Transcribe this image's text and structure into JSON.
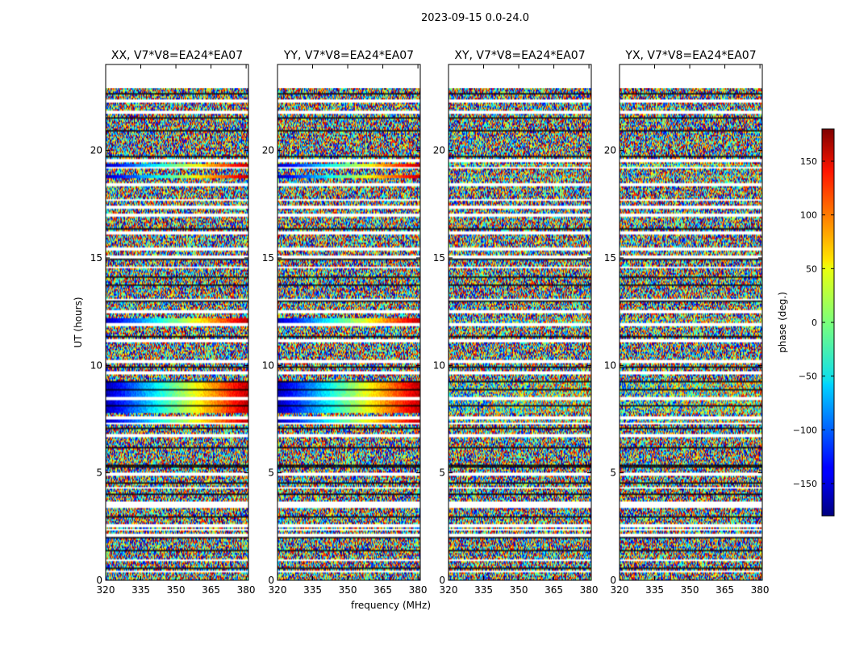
{
  "figure_title": "2023-09-15 0.0-24.0",
  "chart_data": {
    "type": "heatmap",
    "title": "2023-09-15 0.0-24.0",
    "xlabel": "frequency (MHz)",
    "ylabel": "UT (hours)",
    "xlim": [
      320,
      381
    ],
    "ylim": [
      0,
      24
    ],
    "xticks": [
      320,
      335,
      350,
      365,
      380
    ],
    "yticks": [
      0,
      5,
      10,
      15,
      20
    ],
    "data_extent_hours": [
      0,
      22.9
    ],
    "panels": [
      {
        "title": "XX, V7*V8=EA24*EA07",
        "xlabel": ""
      },
      {
        "title": "YY, V7*V8=EA24*EA07",
        "xlabel": "frequency (MHz)"
      },
      {
        "title": "XY, V7*V8=EA24*EA07",
        "xlabel": ""
      },
      {
        "title": "YX, V7*V8=EA24*EA07",
        "xlabel": ""
      }
    ],
    "colorbar": {
      "label": "phase (deg.)",
      "range": [
        -180,
        180
      ],
      "ticks": [
        150,
        100,
        50,
        0,
        -50,
        -100,
        -150
      ],
      "colormap": "jet"
    },
    "gap_hours": [
      0.4,
      0.95,
      2.1,
      2.35,
      2.55,
      3.45,
      3.6,
      4.3,
      4.95,
      6.75,
      7.3,
      7.55,
      8.45,
      9.65,
      10.2,
      11.15,
      11.9,
      12.5,
      13.05,
      14.55,
      15.05,
      15.4,
      16.15,
      17.0,
      17.35,
      17.7,
      18.4,
      19.2,
      19.55,
      21.8,
      22.3
    ],
    "dark_line_hours": [
      0.55,
      1.35,
      1.95,
      2.95,
      4.0,
      4.55,
      5.25,
      5.35,
      6.15,
      7.05,
      8.1,
      8.9,
      9.25,
      9.95,
      11.35,
      12.95,
      13.75,
      14.1,
      14.9,
      16.35,
      19.75,
      20.95,
      21.55,
      22.45,
      22.65
    ],
    "coherent_hours": [
      [
        7.3,
        7.55
      ],
      [
        7.8,
        8.35
      ],
      [
        8.45,
        9.3
      ],
      [
        11.95,
        12.2
      ],
      [
        18.7,
        18.85
      ],
      [
        19.25,
        19.4
      ]
    ],
    "coherent_strength": [
      1.0,
      1.0,
      0.22,
      0.22
    ]
  }
}
